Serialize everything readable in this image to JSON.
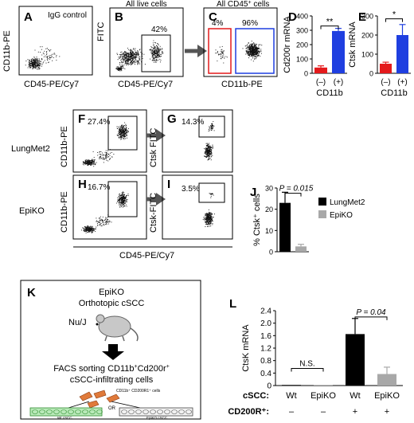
{
  "figure": {
    "panels": {
      "A": "A",
      "B": "B",
      "C": "C",
      "D": "D",
      "E": "E",
      "F": "F",
      "G": "G",
      "H": "H",
      "I": "I",
      "J": "J",
      "K": "K",
      "L": "L"
    },
    "flow_row1": {
      "A": {
        "inner_label": "IgG control",
        "ylabel": "CD11b-PE",
        "xlabel": "CD45-PE/Cy7"
      },
      "B": {
        "title": "All live cells",
        "ylabel": "FITC",
        "xlabel": "CD45-PE/Cy7",
        "gate_pct": "42%"
      },
      "C": {
        "title_prefix": "All CD45",
        "title_sup": "+",
        "title_suffix": " cells",
        "xlabel": "CD11b-PE",
        "gate_left_pct": "4%",
        "gate_right_pct": "96%"
      }
    },
    "flow_rows": {
      "row1_label": "LungMet2",
      "row2_label": "EpiKO",
      "F": {
        "ylabel": "CD11b-PE",
        "gate_pct": "27.4%"
      },
      "G": {
        "ylabel": "Ctsk FITC",
        "gate_pct": "14.3%"
      },
      "H": {
        "ylabel": "CD11b-PE",
        "gate_pct": "16.7%"
      },
      "I": {
        "ylabel": "Ctsk-FITC",
        "gate_pct": "3.5%"
      },
      "shared_xlabel": "CD45-PE/Cy7"
    },
    "schematic": {
      "line1": "EpiKO",
      "line2": "Orthotopic cSCC",
      "mouse_label": "Nu/J",
      "facs_prefix": "FACS sorting CD11b",
      "facs_sup1": "+",
      "facs_mid": "Cd200r",
      "facs_sup2": "+",
      "facs_line2": "cSCC-infiltrating cells",
      "cells_label": "CD11b⁺ CD200R1⁺ cells",
      "or_label": "OR",
      "dish_left": "Wt cSCC",
      "dish_right": "EpiKO cSCC"
    },
    "colors": {
      "red": "#e41a1c",
      "blue": "#1f3fe0",
      "black": "#000000",
      "gray": "#a8a8a8",
      "orange": "#e07a3a",
      "green": "#5cc05c"
    }
  },
  "chart_data": [
    {
      "panel": "D",
      "type": "bar",
      "ylabel": "Cd200r mRNA",
      "categories": [
        "(–)",
        "(+)"
      ],
      "category_label": "CD11b",
      "values": [
        40,
        295
      ],
      "errors": [
        12,
        18
      ],
      "bar_colors": [
        "#e41a1c",
        "#1f3fe0"
      ],
      "ylim": [
        0,
        400
      ],
      "yticks": [
        "0",
        "100",
        "200",
        "300",
        "400"
      ],
      "significance": "**"
    },
    {
      "panel": "E",
      "type": "bar",
      "ylabel": "Ctsk mRNA",
      "categories": [
        "(–)",
        "(+)"
      ],
      "category_label": "CD11b",
      "values": [
        50,
        200
      ],
      "errors": [
        8,
        55
      ],
      "bar_colors": [
        "#e41a1c",
        "#1f3fe0"
      ],
      "ylim": [
        0,
        300
      ],
      "yticks": [
        "0",
        "100",
        "200",
        "300"
      ],
      "significance": "*"
    },
    {
      "panel": "J",
      "type": "bar",
      "ylabel": "% Ctsk⁺ cells",
      "categories": [
        "LungMet2",
        "EpiKO"
      ],
      "values": [
        23,
        2.5
      ],
      "errors": [
        5,
        1
      ],
      "bar_colors": [
        "#000000",
        "#a8a8a8"
      ],
      "ylim": [
        0,
        30
      ],
      "yticks": [
        "0",
        "10",
        "20",
        "30"
      ],
      "annotation": "P = 0.015",
      "legend": [
        "LungMet2",
        "EpiKO"
      ]
    },
    {
      "panel": "L",
      "type": "bar",
      "ylabel": "CtsK mRNA",
      "row_labels": [
        "cSCC:",
        "CD200R⁺:"
      ],
      "categories": [
        "Wt",
        "EpiKO",
        "Wt",
        "EpiKO"
      ],
      "cd200r_status": [
        "–",
        "–",
        "+",
        "+"
      ],
      "values": [
        0.02,
        0.02,
        1.65,
        0.37
      ],
      "errors": [
        0,
        0,
        0.5,
        0.22
      ],
      "bar_colors": [
        "#000000",
        "#a8a8a8",
        "#000000",
        "#a8a8a8"
      ],
      "ylim": [
        0,
        2.4
      ],
      "yticks": [
        "0",
        "0.4",
        "0.8",
        "1.2",
        "1.6",
        "2.0",
        "2.4"
      ],
      "annotations": [
        "N.S.",
        "P = 0.04"
      ]
    }
  ]
}
